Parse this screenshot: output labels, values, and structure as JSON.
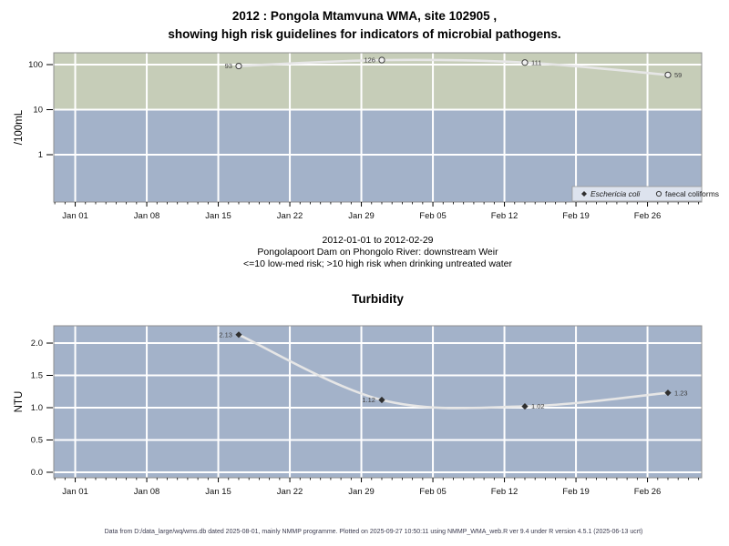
{
  "page": {
    "title_line1": "2012 : Pongola Mtamvuna WMA, site 102905 ,",
    "title_line2": "showing high risk guidelines for indicators of microbial pathogens.",
    "caption_line1": "2012-01-01 to 2012-02-29",
    "caption_line2": "Pongolapoort Dam on Phongolo River: downstream Weir",
    "caption_line3": "<=10 low-med risk; >10 high risk when drinking untreated water",
    "footer": "Data from D:/data_large/wq/wms.db dated 2025-08-01, mainly NMMP programme. Plotted on 2025-09-27 10:50:11 using NMMP_WMA_web.R ver 9.4 under R version 4.5.1 (2025-06-13 ucrt)"
  },
  "colors": {
    "high_risk_band": "#c6cdb8",
    "low_med_risk_band": "#a3b2c9",
    "gridline": "#ffffff",
    "plot_border": "#8f8f8f",
    "data_line": "#e6e6e6",
    "marker_stroke": "#3c3c3c",
    "open_circle_fill": "#f0f0f0",
    "diamond_fill": "#2f2f2f",
    "legend_bg": "#dde3ee",
    "legend_border": "#9a9a9a",
    "tick_text": "#111111",
    "point_label": "#404040",
    "footer_text": "#3b3b4f"
  },
  "chart_data": [
    {
      "id": "microbial-indicators",
      "type": "line",
      "title": "2012 : Pongola Mtamvuna WMA, site 102905 , showing high risk guidelines for indicators of microbial pathogens.",
      "ylabel": "/100mL",
      "yscale": "log",
      "ytick_values": [
        100,
        10,
        1
      ],
      "ytick_labels": [
        "100",
        "10",
        "1"
      ],
      "y_range": [
        0.089,
        183
      ],
      "xtick_labels": [
        "Jan 01",
        "Jan 08",
        "Jan 15",
        "Jan 22",
        "Jan 29",
        "Feb 05",
        "Feb 12",
        "Feb 19",
        "Feb 26"
      ],
      "xtick_days": [
        0,
        7,
        14,
        21,
        28,
        35,
        42,
        49,
        56
      ],
      "x_range_days": [
        -2.1,
        61.3
      ],
      "high_risk_threshold": 10,
      "risk_note": "<=10 low-med risk; >10 high risk when drinking untreated water",
      "bands": [
        {
          "label": "high risk (>10)",
          "color": "#c6cdb8"
        },
        {
          "label": "low-med risk (<=10)",
          "color": "#a3b2c9"
        }
      ],
      "series": [
        {
          "name": "Eschericia coli",
          "marker": "filled-diamond",
          "points": []
        },
        {
          "name": "faecal coliforms",
          "marker": "open-circle",
          "points": [
            {
              "day": 16,
              "value": 93,
              "label": "93",
              "label_side": "left"
            },
            {
              "day": 30,
              "value": 126,
              "label": "126",
              "label_side": "left"
            },
            {
              "day": 44,
              "value": 111,
              "label": "111",
              "label_side": "right"
            },
            {
              "day": 58,
              "value": 59,
              "label": "59",
              "label_side": "right"
            }
          ]
        }
      ],
      "legend": {
        "position": "bottom-right",
        "items": [
          {
            "marker": "filled-diamond",
            "label": "Eschericia coli",
            "italic": true
          },
          {
            "marker": "open-circle",
            "label": "faecal coliforms",
            "italic": false
          }
        ]
      }
    },
    {
      "id": "turbidity",
      "type": "line",
      "title": "Turbidity",
      "ylabel": "NTU",
      "yscale": "linear",
      "ytick_values": [
        0,
        0.5,
        1,
        1.5,
        2
      ],
      "ytick_labels": [
        "0.0",
        "0.5",
        "1.0",
        "1.5",
        "2.0"
      ],
      "y_range": [
        -0.085,
        2.268
      ],
      "xtick_labels": [
        "Jan 01",
        "Jan 08",
        "Jan 15",
        "Jan 22",
        "Jan 29",
        "Feb 05",
        "Feb 12",
        "Feb 19",
        "Feb 26"
      ],
      "xtick_days": [
        0,
        7,
        14,
        21,
        28,
        35,
        42,
        49,
        56
      ],
      "x_range_days": [
        -2.1,
        61.3
      ],
      "background": "#a3b2c9",
      "series": [
        {
          "name": "Turbidity",
          "marker": "filled-diamond",
          "points": [
            {
              "day": 16,
              "value": 2.13,
              "label": "2.13",
              "label_side": "left"
            },
            {
              "day": 30,
              "value": 1.12,
              "label": "1.12",
              "label_side": "left"
            },
            {
              "day": 44,
              "value": 1.02,
              "label": "1.02",
              "label_side": "right"
            },
            {
              "day": 58,
              "value": 1.23,
              "label": "1.23",
              "label_side": "right"
            }
          ]
        }
      ]
    }
  ]
}
